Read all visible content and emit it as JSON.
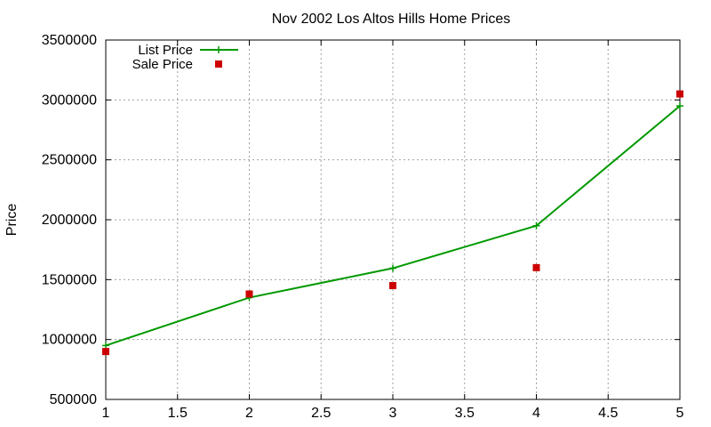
{
  "chart_data": {
    "type": "line",
    "title": "Nov 2002 Los Altos Hills Home Prices",
    "xlabel": "",
    "ylabel": "Price",
    "xlim": [
      1,
      5
    ],
    "ylim": [
      500000,
      3500000
    ],
    "xticks": [
      "1",
      "1.5",
      "2",
      "2.5",
      "3",
      "3.5",
      "4",
      "4.5",
      "5"
    ],
    "yticks": [
      "500000",
      "1000000",
      "1500000",
      "2000000",
      "2500000",
      "3000000",
      "3500000"
    ],
    "grid": true,
    "legend_position": "top-left",
    "series": [
      {
        "name": "List Price",
        "style": "lines+points",
        "marker": "plus",
        "color": "#009900",
        "x": [
          1,
          2,
          3,
          4,
          5
        ],
        "y": [
          950000,
          1350000,
          1595000,
          1950000,
          2950000
        ]
      },
      {
        "name": "Sale Price",
        "style": "points",
        "marker": "square",
        "color": "#cc0000",
        "x": [
          1,
          2,
          3,
          4,
          5
        ],
        "y": [
          900000,
          1380000,
          1450000,
          1600000,
          3050000
        ]
      }
    ]
  }
}
